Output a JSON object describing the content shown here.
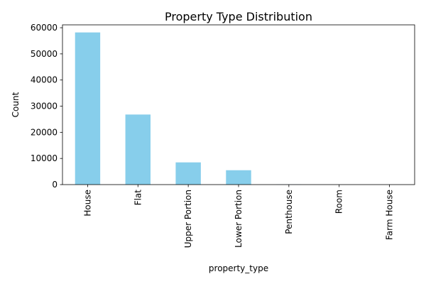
{
  "chart_data": {
    "type": "bar",
    "title": "Property Type Distribution",
    "xlabel": "property_type",
    "ylabel": "Count",
    "categories": [
      "House",
      "Flat",
      "Upper Portion",
      "Lower Portion",
      "Penthouse",
      "Room",
      "Farm House"
    ],
    "values": [
      58200,
      26800,
      8500,
      5500,
      70,
      10,
      5
    ],
    "ylim": [
      0,
      61100
    ],
    "yticks": [
      0,
      10000,
      20000,
      30000,
      40000,
      50000,
      60000
    ],
    "ytick_labels": [
      "0",
      "10000",
      "20000",
      "30000",
      "40000",
      "50000",
      "60000"
    ],
    "grid": false,
    "colors": {
      "bar": "#87ceeb",
      "axis": "#000000"
    }
  }
}
